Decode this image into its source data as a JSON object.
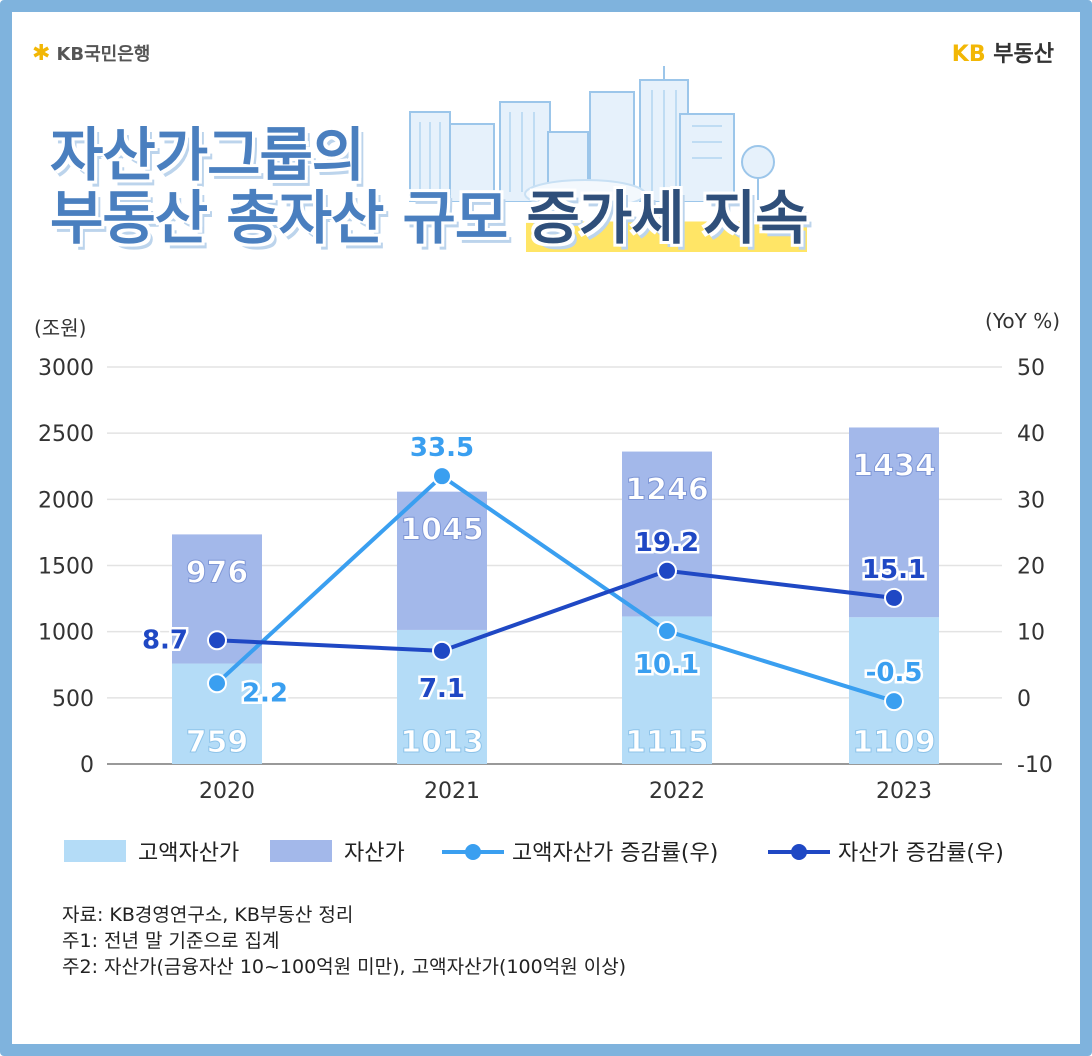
{
  "brand_left": "KB국민은행",
  "brand_right_kb": "KB",
  "brand_right_name": "부동산",
  "headline": {
    "line1": "자산가그룹의",
    "line2_prefix": "부동산 총자산 규모",
    "line2_highlight": "증가세 지속"
  },
  "chart_data": {
    "type": "bar",
    "stacked": true,
    "categories": [
      "2020",
      "2021",
      "2022",
      "2023"
    ],
    "series": [
      {
        "name": "고액자산가",
        "kind": "bar",
        "axis": "left",
        "color": "#b4dcf7",
        "values": [
          759,
          1013,
          1115,
          1109
        ]
      },
      {
        "name": "자산가",
        "kind": "bar",
        "axis": "left",
        "color": "#a3b8ea",
        "values": [
          976,
          1045,
          1246,
          1434
        ]
      },
      {
        "name": "고액자산가 증감률(우)",
        "kind": "line",
        "axis": "right",
        "color": "#3a9ff0",
        "values": [
          2.2,
          33.5,
          10.1,
          -0.5
        ]
      },
      {
        "name": "자산가 증감률(우)",
        "kind": "line",
        "axis": "right",
        "color": "#1f48c4",
        "values": [
          8.7,
          7.1,
          19.2,
          15.1
        ]
      }
    ],
    "left_axis": {
      "label": "(조원)",
      "min": 0,
      "max": 3000,
      "ticks": [
        0,
        500,
        1000,
        1500,
        2000,
        2500,
        3000
      ]
    },
    "right_axis": {
      "label": "(YoY %)",
      "min": -10,
      "max": 50,
      "ticks": [
        -10,
        0,
        10,
        20,
        30,
        40,
        50
      ]
    },
    "grid": true,
    "legend": "bottom"
  },
  "notes": {
    "source": "자료: KB경영연구소, KB부동산 정리",
    "note1": "주1: 전년 말 기준으로 집계",
    "note2": "주2: 자산가(금융자산 10~100억원 미만), 고액자산가(100억원 이상)"
  }
}
